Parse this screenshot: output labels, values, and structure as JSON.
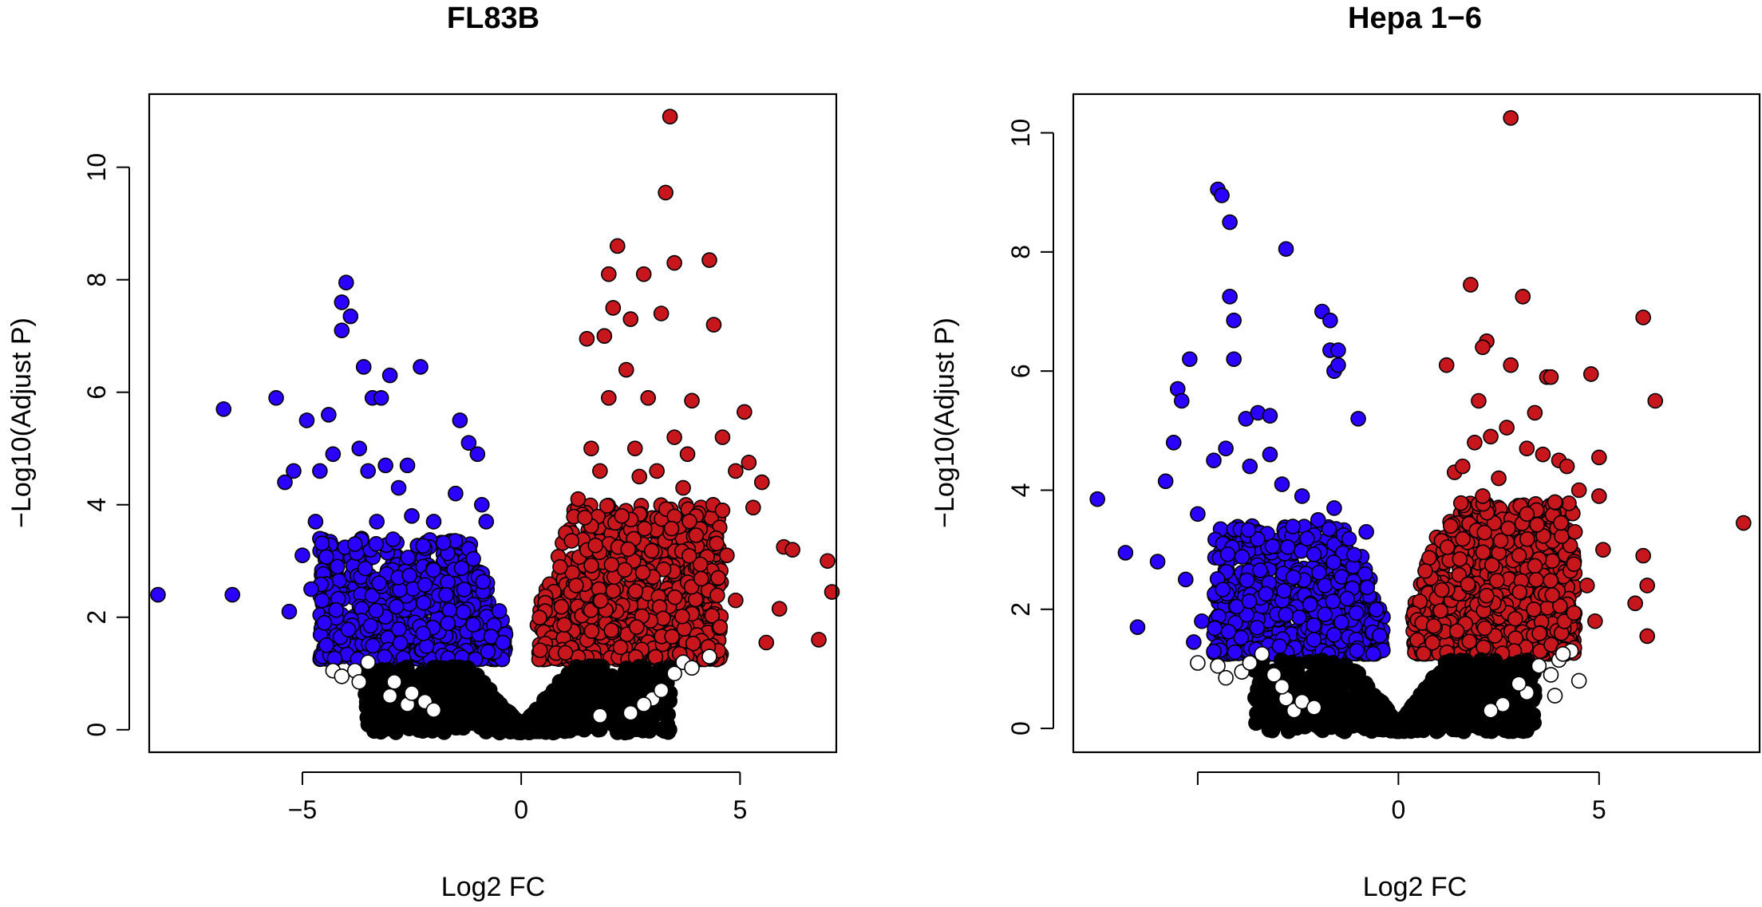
{
  "chart_data": [
    {
      "type": "scatter",
      "title": "FL83B",
      "xlabel": "Log2 FC",
      "ylabel": "−Log10(Adjust P)",
      "xlim": [
        -8.5,
        7.2
      ],
      "ylim": [
        -0.4,
        11.3
      ],
      "xticks": [
        -5,
        0,
        5
      ],
      "xtick_labels": [
        "−5",
        "0",
        "5"
      ],
      "yticks": [
        0,
        2,
        4,
        6,
        8,
        10
      ],
      "ytick_labels": [
        "0",
        "2",
        "4",
        "6",
        "8",
        "10"
      ],
      "colors": {
        "down": "#2b00ff",
        "up": "#c8161d",
        "ns_fill": "#ffffff",
        "dense_ns": "#000000"
      },
      "cloud_params": {
        "maxLeft": 4.6,
        "maxRight": 4.6,
        "y_threshold": 1.2,
        "maxY_left": 3.4,
        "maxY_right": 4.0
      },
      "down": [
        [
          -8.3,
          2.4
        ],
        [
          -6.8,
          5.7
        ],
        [
          -6.6,
          2.4
        ],
        [
          -5.6,
          5.9
        ],
        [
          -5.4,
          4.4
        ],
        [
          -5.3,
          2.1
        ],
        [
          -5.2,
          4.6
        ],
        [
          -4.9,
          5.5
        ],
        [
          -4.7,
          3.7
        ],
        [
          -4.6,
          4.6
        ],
        [
          -4.4,
          5.6
        ],
        [
          -4.3,
          4.9
        ],
        [
          -4.1,
          7.6
        ],
        [
          -4.0,
          7.95
        ],
        [
          -4.1,
          7.1
        ],
        [
          -3.9,
          7.35
        ],
        [
          -3.6,
          6.45
        ],
        [
          -3.4,
          5.9
        ],
        [
          -3.2,
          5.9
        ],
        [
          -3.0,
          6.3
        ],
        [
          -3.7,
          5.0
        ],
        [
          -3.5,
          4.6
        ],
        [
          -3.1,
          4.7
        ],
        [
          -2.8,
          4.3
        ],
        [
          -2.6,
          4.7
        ],
        [
          -2.5,
          3.8
        ],
        [
          -2.3,
          6.45
        ],
        [
          -2.0,
          3.7
        ],
        [
          -1.4,
          5.5
        ],
        [
          -1.2,
          5.1
        ],
        [
          -1.0,
          4.9
        ],
        [
          -1.5,
          4.2
        ],
        [
          -0.9,
          4.0
        ],
        [
          -0.8,
          3.7
        ],
        [
          -5.0,
          3.1
        ],
        [
          -4.8,
          2.5
        ],
        [
          -4.5,
          1.9
        ],
        [
          -4.2,
          2.9
        ],
        [
          -3.8,
          3.3
        ],
        [
          -3.3,
          3.7
        ]
      ],
      "up": [
        [
          3.4,
          10.9
        ],
        [
          3.3,
          9.55
        ],
        [
          2.2,
          8.6
        ],
        [
          2.0,
          8.1
        ],
        [
          2.8,
          8.1
        ],
        [
          3.5,
          8.3
        ],
        [
          4.3,
          8.35
        ],
        [
          4.4,
          7.2
        ],
        [
          2.1,
          7.5
        ],
        [
          1.9,
          7.0
        ],
        [
          2.5,
          7.3
        ],
        [
          3.2,
          7.4
        ],
        [
          1.5,
          6.95
        ],
        [
          2.4,
          6.4
        ],
        [
          2.0,
          5.9
        ],
        [
          2.9,
          5.9
        ],
        [
          3.9,
          5.85
        ],
        [
          5.1,
          5.65
        ],
        [
          4.6,
          5.2
        ],
        [
          3.5,
          5.2
        ],
        [
          2.6,
          5.0
        ],
        [
          1.6,
          5.0
        ],
        [
          4.9,
          4.6
        ],
        [
          5.2,
          4.75
        ],
        [
          3.8,
          4.9
        ],
        [
          5.5,
          4.4
        ],
        [
          5.3,
          3.95
        ],
        [
          4.6,
          3.9
        ],
        [
          6.0,
          3.25
        ],
        [
          6.2,
          3.2
        ],
        [
          7.0,
          3.0
        ],
        [
          7.1,
          2.45
        ],
        [
          5.9,
          2.15
        ],
        [
          5.6,
          1.55
        ],
        [
          6.8,
          1.6
        ],
        [
          4.9,
          2.3
        ],
        [
          4.5,
          2.7
        ],
        [
          4.7,
          3.1
        ],
        [
          3.7,
          4.3
        ],
        [
          3.1,
          4.6
        ],
        [
          2.7,
          4.5
        ],
        [
          1.8,
          4.6
        ],
        [
          1.3,
          4.1
        ],
        [
          2.3,
          3.8
        ]
      ],
      "ns": [
        [
          -3.8,
          1.05
        ],
        [
          -4.3,
          1.05
        ],
        [
          -4.1,
          0.95
        ],
        [
          -3.7,
          0.85
        ],
        [
          -3.5,
          1.2
        ],
        [
          -3.0,
          0.6
        ],
        [
          -2.9,
          0.85
        ],
        [
          -2.6,
          0.45
        ],
        [
          -2.5,
          0.65
        ],
        [
          -2.2,
          0.5
        ],
        [
          -2.0,
          0.35
        ],
        [
          3.7,
          1.2
        ],
        [
          3.9,
          1.1
        ],
        [
          4.3,
          1.3
        ],
        [
          3.0,
          0.55
        ],
        [
          3.2,
          0.7
        ],
        [
          2.8,
          0.45
        ],
        [
          2.5,
          0.3
        ],
        [
          1.8,
          0.25
        ],
        [
          3.5,
          1.0
        ]
      ]
    },
    {
      "type": "scatter",
      "title": "Hepa 1−6",
      "xlabel": "Log2 FC",
      "ylabel": "−Log10(Adjust P)",
      "xlim": [
        -8.1,
        9.0
      ],
      "ylim": [
        -0.4,
        10.65
      ],
      "xticks": [
        -5,
        0,
        5
      ],
      "xtick_labels": [
        "",
        "0",
        "5"
      ],
      "yticks": [
        0,
        2,
        4,
        6,
        8,
        10
      ],
      "ytick_labels": [
        "0",
        "2",
        "4",
        "6",
        "8",
        "10"
      ],
      "colors": {
        "down": "#2b00ff",
        "up": "#c8161d",
        "ns_fill": "#ffffff",
        "dense_ns": "#000000"
      },
      "cloud_params": {
        "maxLeft": 4.6,
        "maxRight": 4.4,
        "y_threshold": 1.2,
        "maxY_left": 3.4,
        "maxY_right": 3.8
      },
      "down": [
        [
          -7.5,
          3.85
        ],
        [
          -6.8,
          2.95
        ],
        [
          -6.5,
          1.7
        ],
        [
          -6.0,
          2.8
        ],
        [
          -5.8,
          4.15
        ],
        [
          -5.6,
          4.8
        ],
        [
          -5.5,
          5.7
        ],
        [
          -5.4,
          5.5
        ],
        [
          -5.2,
          6.2
        ],
        [
          -4.5,
          9.05
        ],
        [
          -4.4,
          8.95
        ],
        [
          -4.2,
          8.5
        ],
        [
          -4.2,
          7.25
        ],
        [
          -4.1,
          6.85
        ],
        [
          -4.1,
          6.2
        ],
        [
          -3.8,
          5.2
        ],
        [
          -3.5,
          5.3
        ],
        [
          -3.2,
          5.25
        ],
        [
          -2.8,
          8.05
        ],
        [
          -1.9,
          7.0
        ],
        [
          -1.7,
          6.85
        ],
        [
          -1.7,
          6.35
        ],
        [
          -1.5,
          6.35
        ],
        [
          -1.6,
          6.0
        ],
        [
          -1.5,
          6.1
        ],
        [
          -1.0,
          5.2
        ],
        [
          -4.6,
          4.5
        ],
        [
          -4.3,
          4.7
        ],
        [
          -3.7,
          4.4
        ],
        [
          -3.2,
          4.6
        ],
        [
          -2.9,
          4.1
        ],
        [
          -2.4,
          3.9
        ],
        [
          -2.0,
          3.5
        ],
        [
          -1.6,
          3.7
        ],
        [
          -0.8,
          3.3
        ],
        [
          -5.0,
          3.6
        ],
        [
          -5.3,
          2.5
        ],
        [
          -4.9,
          1.8
        ],
        [
          -5.1,
          1.45
        ]
      ],
      "up": [
        [
          2.8,
          10.25
        ],
        [
          1.8,
          7.45
        ],
        [
          3.1,
          7.25
        ],
        [
          6.1,
          6.9
        ],
        [
          6.4,
          5.5
        ],
        [
          2.2,
          6.5
        ],
        [
          2.1,
          6.4
        ],
        [
          2.8,
          6.1
        ],
        [
          1.2,
          6.1
        ],
        [
          3.7,
          5.9
        ],
        [
          3.8,
          5.9
        ],
        [
          4.8,
          5.95
        ],
        [
          2.0,
          5.5
        ],
        [
          3.4,
          5.3
        ],
        [
          2.7,
          5.05
        ],
        [
          2.3,
          4.9
        ],
        [
          1.9,
          4.8
        ],
        [
          3.2,
          4.7
        ],
        [
          3.6,
          4.6
        ],
        [
          4.0,
          4.5
        ],
        [
          4.2,
          4.4
        ],
        [
          5.0,
          4.55
        ],
        [
          1.4,
          4.3
        ],
        [
          1.6,
          4.4
        ],
        [
          2.5,
          4.2
        ],
        [
          4.5,
          4.0
        ],
        [
          5.0,
          3.9
        ],
        [
          8.6,
          3.45
        ],
        [
          5.1,
          3.0
        ],
        [
          6.1,
          2.9
        ],
        [
          5.9,
          2.1
        ],
        [
          6.2,
          2.4
        ],
        [
          6.2,
          1.55
        ],
        [
          4.7,
          2.4
        ],
        [
          4.9,
          1.8
        ],
        [
          3.2,
          3.6
        ],
        [
          3.9,
          3.8
        ],
        [
          1.3,
          3.4
        ],
        [
          2.1,
          3.9
        ],
        [
          4.4,
          3.3
        ]
      ],
      "ns": [
        [
          -4.5,
          1.05
        ],
        [
          -4.3,
          0.85
        ],
        [
          -3.9,
          0.95
        ],
        [
          -3.7,
          1.1
        ],
        [
          -3.4,
          1.25
        ],
        [
          -3.1,
          0.9
        ],
        [
          -2.8,
          0.5
        ],
        [
          -2.6,
          0.3
        ],
        [
          -2.9,
          0.7
        ],
        [
          -2.4,
          0.45
        ],
        [
          -2.1,
          0.35
        ],
        [
          -5.0,
          1.1
        ],
        [
          4.5,
          0.8
        ],
        [
          4.3,
          1.3
        ],
        [
          4.0,
          1.15
        ],
        [
          3.8,
          0.9
        ],
        [
          3.5,
          1.05
        ],
        [
          3.2,
          0.6
        ],
        [
          3.0,
          0.75
        ],
        [
          2.6,
          0.4
        ],
        [
          2.3,
          0.3
        ],
        [
          3.9,
          0.55
        ],
        [
          4.1,
          1.25
        ]
      ]
    }
  ]
}
